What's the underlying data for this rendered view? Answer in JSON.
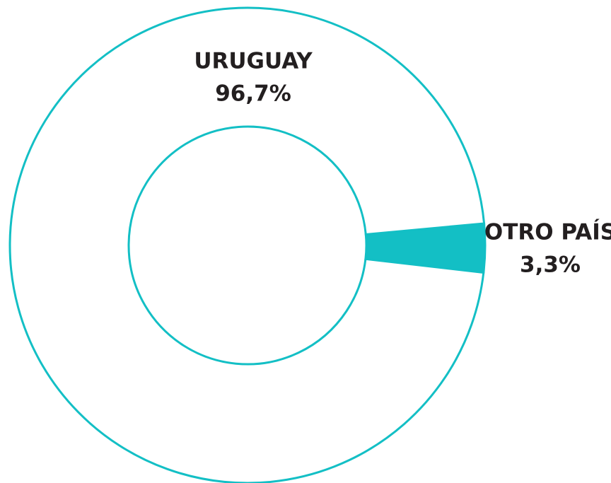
{
  "chart_data": {
    "type": "donut",
    "categories": [
      "URUGUAY",
      "OTRO PAÍS"
    ],
    "values": [
      96.7,
      3.3
    ],
    "value_labels": [
      "96,7%",
      "3,3%"
    ],
    "colors": [
      "#ffffff",
      "#13bfc5"
    ],
    "stroke": "#13bfc5"
  }
}
